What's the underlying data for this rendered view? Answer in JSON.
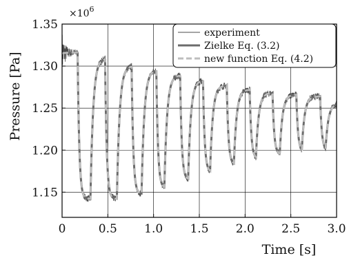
{
  "chart_data": {
    "type": "line",
    "title": "",
    "xlabel": "Time [s]",
    "ylabel": "Pressure [Pa]",
    "y_multiplier_label": "×10",
    "y_multiplier_exponent": "6",
    "xlim": [
      0,
      3.0
    ],
    "ylim": [
      1.12,
      1.35
    ],
    "x_ticks": [
      0,
      0.5,
      1.0,
      1.5,
      2.0,
      2.5,
      3.0
    ],
    "x_tick_labels": [
      "0",
      "0.5",
      "1.0",
      "1.5",
      "2.0",
      "2.5",
      "3.0"
    ],
    "y_ticks": [
      1.15,
      1.2,
      1.25,
      1.3,
      1.35
    ],
    "y_tick_labels": [
      "1.15",
      "1.20",
      "1.25",
      "1.30",
      "1.35"
    ],
    "grid": true,
    "legend_position": "top-right",
    "cycles": [
      {
        "rise": 0.0,
        "fall": 0.17,
        "low": 1.142,
        "peak": 1.316
      },
      {
        "rise": 0.31,
        "fall": 0.47,
        "low": 1.142,
        "peak": 1.309
      },
      {
        "rise": 0.6,
        "fall": 0.76,
        "low": 1.148,
        "peak": 1.3
      },
      {
        "rise": 0.87,
        "fall": 1.03,
        "low": 1.155,
        "peak": 1.295
      },
      {
        "rise": 1.12,
        "fall": 1.29,
        "low": 1.165,
        "peak": 1.289
      },
      {
        "rise": 1.38,
        "fall": 1.54,
        "low": 1.174,
        "peak": 1.283
      },
      {
        "rise": 1.62,
        "fall": 1.8,
        "low": 1.183,
        "peak": 1.277
      },
      {
        "rise": 1.88,
        "fall": 2.05,
        "low": 1.19,
        "peak": 1.272
      },
      {
        "rise": 2.12,
        "fall": 2.3,
        "low": 1.195,
        "peak": 1.268
      },
      {
        "rise": 2.38,
        "fall": 2.56,
        "low": 1.198,
        "peak": 1.266
      },
      {
        "rise": 2.62,
        "fall": 2.82,
        "low": 1.2,
        "peak": 1.264
      },
      {
        "rise": 2.88,
        "fall": 3.0,
        "low": 1.202,
        "peak": 1.255
      }
    ],
    "series": [
      {
        "name": "experiment",
        "color": "#4a4a4a",
        "style": "thin-noisy"
      },
      {
        "name": "Zielke Eq. (3.2)",
        "color": "#6b6b6b",
        "style": "thick-solid"
      },
      {
        "name": "new function Eq. (4.2)",
        "color": "#bdbdbd",
        "style": "thick-dashed"
      }
    ]
  }
}
